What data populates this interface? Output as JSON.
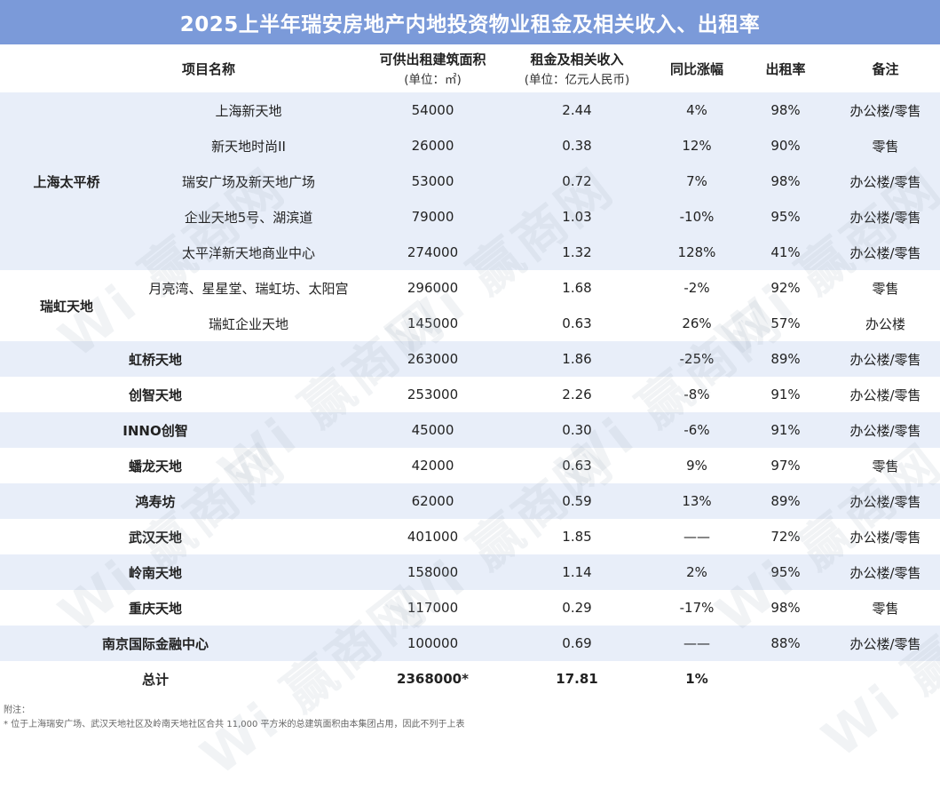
{
  "title": "2025上半年瑞安房地产内地投资物业租金及相关收入、出租率",
  "headers": {
    "name": "项目名称",
    "area": "可供出租建筑面积",
    "area_unit": "(单位：㎡)",
    "rent": "租金及相关收入",
    "rent_unit": "(单位：亿元人民币)",
    "yoy": "同比涨幅",
    "occupancy": "出租率",
    "remarks": "备注"
  },
  "groups": {
    "taipingqiao": "上海太平桥",
    "ruihong": "瑞虹天地"
  },
  "rows": [
    {
      "name": "上海新天地",
      "area": "54000",
      "rent": "2.44",
      "yoy": "4%",
      "occupancy": "98%",
      "remarks": "办公楼/零售"
    },
    {
      "name": "新天地时尚II",
      "area": "26000",
      "rent": "0.38",
      "yoy": "12%",
      "occupancy": "90%",
      "remarks": "零售"
    },
    {
      "name": "瑞安广场及新天地广场",
      "area": "53000",
      "rent": "0.72",
      "yoy": "7%",
      "occupancy": "98%",
      "remarks": "办公楼/零售"
    },
    {
      "name": "企业天地5号、湖滨道",
      "area": "79000",
      "rent": "1.03",
      "yoy": "-10%",
      "occupancy": "95%",
      "remarks": "办公楼/零售"
    },
    {
      "name": "太平洋新天地商业中心",
      "area": "274000",
      "rent": "1.32",
      "yoy": "128%",
      "occupancy": "41%",
      "remarks": "办公楼/零售"
    },
    {
      "name": "月亮湾、星星堂、瑞虹坊、太阳宫",
      "area": "296000",
      "rent": "1.68",
      "yoy": "-2%",
      "occupancy": "92%",
      "remarks": "零售"
    },
    {
      "name": "瑞虹企业天地",
      "area": "145000",
      "rent": "0.63",
      "yoy": "26%",
      "occupancy": "57%",
      "remarks": "办公楼"
    },
    {
      "name": "虹桥天地",
      "area": "263000",
      "rent": "1.86",
      "yoy": "-25%",
      "occupancy": "89%",
      "remarks": "办公楼/零售"
    },
    {
      "name": "创智天地",
      "area": "253000",
      "rent": "2.26",
      "yoy": "-8%",
      "occupancy": "91%",
      "remarks": "办公楼/零售"
    },
    {
      "name": "INNO创智",
      "area": "45000",
      "rent": "0.30",
      "yoy": "-6%",
      "occupancy": "91%",
      "remarks": "办公楼/零售"
    },
    {
      "name": "蟠龙天地",
      "area": "42000",
      "rent": "0.63",
      "yoy": "9%",
      "occupancy": "97%",
      "remarks": "零售"
    },
    {
      "name": "鸿寿坊",
      "area": "62000",
      "rent": "0.59",
      "yoy": "13%",
      "occupancy": "89%",
      "remarks": "办公楼/零售"
    },
    {
      "name": "武汉天地",
      "area": "401000",
      "rent": "1.85",
      "yoy": "——",
      "occupancy": "72%",
      "remarks": "办公楼/零售"
    },
    {
      "name": "岭南天地",
      "area": "158000",
      "rent": "1.14",
      "yoy": "2%",
      "occupancy": "95%",
      "remarks": "办公楼/零售"
    },
    {
      "name": "重庆天地",
      "area": "117000",
      "rent": "0.29",
      "yoy": "-17%",
      "occupancy": "98%",
      "remarks": "零售"
    },
    {
      "name": "南京国际金融中心",
      "area": "100000",
      "rent": "0.69",
      "yoy": "——",
      "occupancy": "88%",
      "remarks": "办公楼/零售"
    }
  ],
  "total": {
    "name": "总计",
    "area": "2368000*",
    "rent": "17.81",
    "yoy": "1%",
    "occupancy": "",
    "remarks": ""
  },
  "notes": {
    "label": "附注：",
    "footnote": "* 位于上海瑞安广场、武汉天地社区及岭南天地社区合共 11,000 平方米的总建筑面积由本集团占用，因此不列于上表"
  },
  "watermark": "赢商网"
}
